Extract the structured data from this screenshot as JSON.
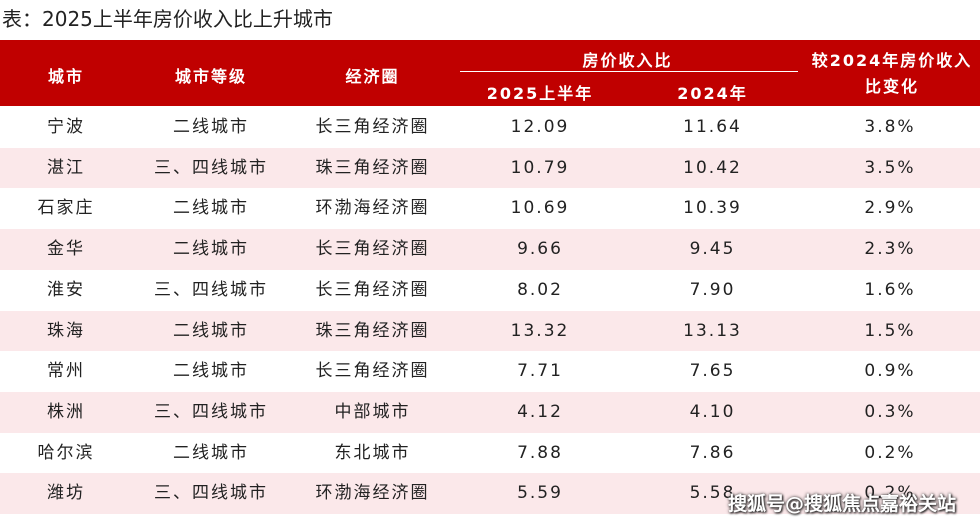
{
  "title": "表：2025上半年房价收入比上升城市",
  "table": {
    "header": {
      "city": "城市",
      "tier": "城市等级",
      "region": "经济圈",
      "ratio": "房价收入比",
      "h1_2025": "2025上半年",
      "y2024": "2024年",
      "change": "较2024年房价收入比变化"
    },
    "rows": [
      [
        "宁波",
        "二线城市",
        "长三角经济圈",
        "12.09",
        "11.64",
        "3.8%"
      ],
      [
        "湛江",
        "三、四线城市",
        "珠三角经济圈",
        "10.79",
        "10.42",
        "3.5%"
      ],
      [
        "石家庄",
        "二线城市",
        "环渤海经济圈",
        "10.69",
        "10.39",
        "2.9%"
      ],
      [
        "金华",
        "二线城市",
        "长三角经济圈",
        "9.66",
        "9.45",
        "2.3%"
      ],
      [
        "淮安",
        "三、四线城市",
        "长三角经济圈",
        "8.02",
        "7.90",
        "1.6%"
      ],
      [
        "珠海",
        "二线城市",
        "珠三角经济圈",
        "13.32",
        "13.13",
        "1.5%"
      ],
      [
        "常州",
        "二线城市",
        "长三角经济圈",
        "7.71",
        "7.65",
        "0.9%"
      ],
      [
        "株洲",
        "三、四线城市",
        "中部城市",
        "4.12",
        "4.10",
        "0.3%"
      ],
      [
        "哈尔滨",
        "二线城市",
        "东北城市",
        "7.88",
        "7.86",
        "0.2%"
      ],
      [
        "潍坊",
        "三、四线城市",
        "环渤海经济圈",
        "5.59",
        "5.58",
        "0.2%"
      ]
    ]
  },
  "watermark": "搜狐号@搜狐焦点嘉裕关站"
}
